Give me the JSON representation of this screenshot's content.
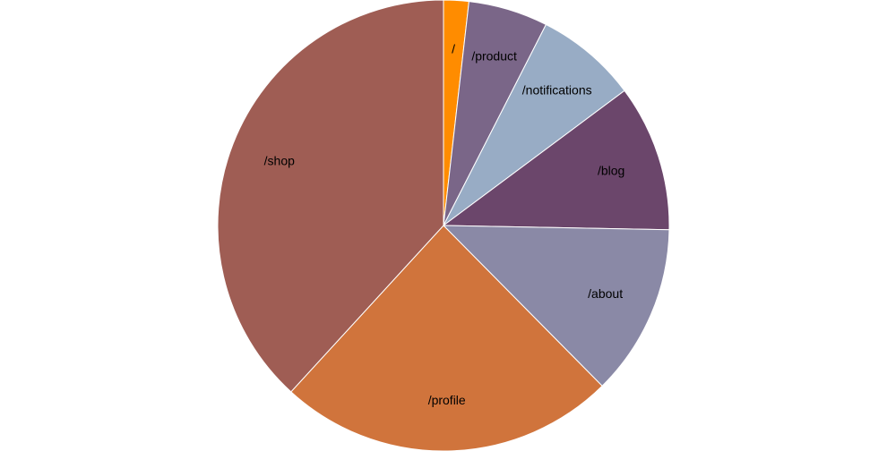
{
  "chart_data": {
    "type": "pie",
    "start_angle_deg": 0,
    "direction": "clockwise",
    "slices": [
      {
        "label": "/",
        "value": 1.8,
        "color": "#ff8c00"
      },
      {
        "label": "/product",
        "value": 5.7,
        "color": "#7a6688"
      },
      {
        "label": "/notifications",
        "value": 7.3,
        "color": "#98acc5"
      },
      {
        "label": "/blog",
        "value": 10.5,
        "color": "#6b466b"
      },
      {
        "label": "/about",
        "value": 12.3,
        "color": "#8a89a6"
      },
      {
        "label": "/profile",
        "value": 24.2,
        "color": "#d0743c"
      },
      {
        "label": "/shop",
        "value": 38.2,
        "color": "#9f5d54"
      }
    ]
  }
}
